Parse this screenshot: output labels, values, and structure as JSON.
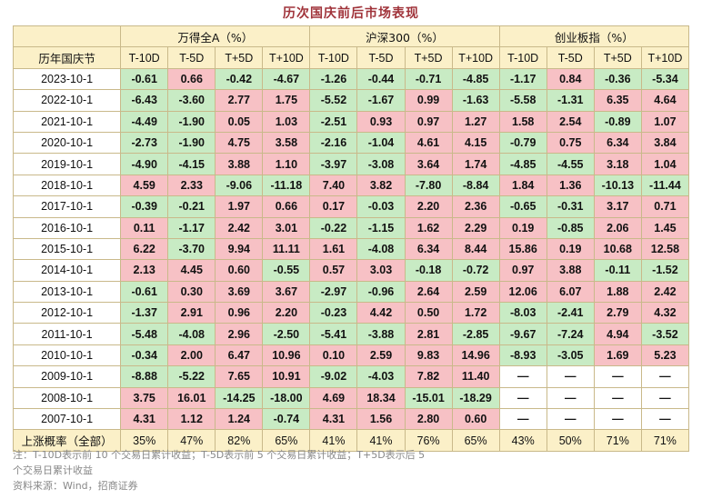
{
  "chart_data": {
    "type": "table",
    "title": "历次国庆前后市场表现",
    "corner_header": "历年国庆节",
    "groups": [
      {
        "name": "万得全A（%）",
        "columns": [
          "T-10D",
          "T-5D",
          "T+5D",
          "T+10D"
        ]
      },
      {
        "name": "沪深300（%）",
        "columns": [
          "T-10D",
          "T-5D",
          "T+5D",
          "T+10D"
        ]
      },
      {
        "name": "创业板指（%）",
        "columns": [
          "T-10D",
          "T-5D",
          "T+5D",
          "T+10D"
        ]
      }
    ],
    "rows": [
      {
        "date": "2023-10-1",
        "values": [
          "-0.61",
          "0.66",
          "-0.42",
          "-4.67",
          "-1.26",
          "-0.44",
          "-0.71",
          "-4.85",
          "-1.17",
          "0.84",
          "-0.36",
          "-5.34"
        ]
      },
      {
        "date": "2022-10-1",
        "values": [
          "-6.43",
          "-3.60",
          "2.77",
          "1.75",
          "-5.52",
          "-1.67",
          "0.99",
          "-1.63",
          "-5.58",
          "-1.31",
          "6.35",
          "4.64"
        ]
      },
      {
        "date": "2021-10-1",
        "values": [
          "-4.49",
          "-1.90",
          "0.05",
          "1.03",
          "-2.51",
          "0.93",
          "0.97",
          "1.27",
          "1.58",
          "2.54",
          "-0.89",
          "1.07"
        ]
      },
      {
        "date": "2020-10-1",
        "values": [
          "-2.73",
          "-1.90",
          "4.75",
          "3.58",
          "-2.16",
          "-1.04",
          "4.61",
          "4.15",
          "-0.79",
          "0.75",
          "6.34",
          "3.84"
        ]
      },
      {
        "date": "2019-10-1",
        "values": [
          "-4.90",
          "-4.15",
          "3.88",
          "1.10",
          "-3.97",
          "-3.08",
          "3.64",
          "1.74",
          "-4.85",
          "-4.55",
          "3.18",
          "1.04"
        ]
      },
      {
        "date": "2018-10-1",
        "values": [
          "4.59",
          "2.33",
          "-9.06",
          "-11.18",
          "7.40",
          "3.82",
          "-7.80",
          "-8.84",
          "1.84",
          "1.36",
          "-10.13",
          "-11.44"
        ]
      },
      {
        "date": "2017-10-1",
        "values": [
          "-0.39",
          "-0.21",
          "1.97",
          "0.66",
          "0.17",
          "-0.03",
          "2.20",
          "2.36",
          "-0.65",
          "-0.31",
          "3.17",
          "0.71"
        ]
      },
      {
        "date": "2016-10-1",
        "values": [
          "0.11",
          "-1.17",
          "2.42",
          "3.01",
          "-0.22",
          "-1.15",
          "1.62",
          "2.29",
          "0.19",
          "-0.85",
          "2.06",
          "1.45"
        ]
      },
      {
        "date": "2015-10-1",
        "values": [
          "6.22",
          "-3.70",
          "9.94",
          "11.11",
          "1.61",
          "-4.08",
          "6.34",
          "8.44",
          "15.86",
          "0.19",
          "10.68",
          "12.58"
        ]
      },
      {
        "date": "2014-10-1",
        "values": [
          "2.13",
          "4.45",
          "0.60",
          "-0.55",
          "0.57",
          "3.03",
          "-0.18",
          "-0.72",
          "0.97",
          "3.88",
          "-0.11",
          "-1.52"
        ]
      },
      {
        "date": "2013-10-1",
        "values": [
          "-0.61",
          "0.30",
          "3.69",
          "3.67",
          "-2.97",
          "-0.96",
          "2.64",
          "2.59",
          "12.06",
          "6.07",
          "1.88",
          "2.42"
        ]
      },
      {
        "date": "2012-10-1",
        "values": [
          "-1.37",
          "2.91",
          "0.96",
          "2.20",
          "-0.23",
          "4.42",
          "0.50",
          "1.72",
          "-8.03",
          "-2.41",
          "2.79",
          "4.32"
        ]
      },
      {
        "date": "2011-10-1",
        "values": [
          "-5.48",
          "-4.08",
          "2.96",
          "-2.50",
          "-5.41",
          "-3.88",
          "2.81",
          "-2.85",
          "-9.67",
          "-7.24",
          "4.94",
          "-3.52"
        ]
      },
      {
        "date": "2010-10-1",
        "values": [
          "-0.34",
          "2.00",
          "6.47",
          "10.96",
          "0.10",
          "2.59",
          "9.83",
          "14.96",
          "-8.93",
          "-3.05",
          "1.69",
          "5.23"
        ]
      },
      {
        "date": "2009-10-1",
        "values": [
          "-8.88",
          "-5.22",
          "7.65",
          "10.91",
          "-9.02",
          "-4.03",
          "7.82",
          "11.40",
          "—",
          "—",
          "—",
          "—"
        ]
      },
      {
        "date": "2008-10-1",
        "values": [
          "3.75",
          "16.01",
          "-14.25",
          "-18.00",
          "4.69",
          "18.34",
          "-15.01",
          "-18.29",
          "—",
          "—",
          "—",
          "—"
        ]
      },
      {
        "date": "2007-10-1",
        "values": [
          "4.31",
          "1.12",
          "1.24",
          "-0.74",
          "4.31",
          "1.56",
          "2.80",
          "0.60",
          "—",
          "—",
          "—",
          "—"
        ]
      }
    ],
    "summary": {
      "label": "上涨概率（全部）",
      "values": [
        "35%",
        "47%",
        "82%",
        "65%",
        "41%",
        "41%",
        "76%",
        "65%",
        "43%",
        "50%",
        "71%",
        "71%"
      ]
    },
    "colors": {
      "positive": "#f7c1c5",
      "negative": "#c8ebc4",
      "header": "#fbf0c8",
      "title": "#a0333a"
    }
  },
  "notes": {
    "line1": "注：T-10D表示前 10 个交易日累计收益；T-5D表示前 5 个交易日累计收益；T+5D表示后 5",
    "line2": "个交易日累计收益",
    "source": "资料来源：Wind，招商证券"
  }
}
